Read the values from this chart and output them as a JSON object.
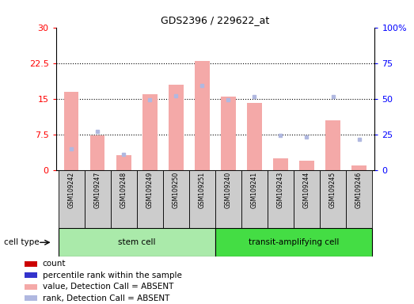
{
  "title": "GDS2396 / 229622_at",
  "samples": [
    "GSM109242",
    "GSM109247",
    "GSM109248",
    "GSM109249",
    "GSM109250",
    "GSM109251",
    "GSM109240",
    "GSM109241",
    "GSM109243",
    "GSM109244",
    "GSM109245",
    "GSM109246"
  ],
  "cell_types": [
    "stem cell",
    "stem cell",
    "stem cell",
    "stem cell",
    "stem cell",
    "stem cell",
    "transit-amplifying cell",
    "transit-amplifying cell",
    "transit-amplifying cell",
    "transit-amplifying cell",
    "transit-amplifying cell",
    "transit-amplifying cell"
  ],
  "bar_values": [
    16.5,
    7.3,
    3.2,
    16.0,
    18.0,
    23.0,
    15.5,
    14.2,
    2.5,
    2.0,
    10.5,
    1.0
  ],
  "dot_values": [
    14.8,
    27.0,
    11.0,
    49.5,
    52.0,
    59.5,
    49.5,
    51.5,
    24.5,
    23.5,
    51.5,
    21.5
  ],
  "ylim_left": [
    0,
    30
  ],
  "ylim_right": [
    0,
    100
  ],
  "left_ticks": [
    0,
    7.5,
    15,
    22.5,
    30
  ],
  "right_ticks": [
    0,
    25,
    50,
    75,
    100
  ],
  "right_tick_labels": [
    "0",
    "25",
    "50",
    "75",
    "100%"
  ],
  "left_tick_labels": [
    "0",
    "7.5",
    "15",
    "22.5",
    "30"
  ],
  "stem_cell_label": "stem cell",
  "transit_label": "transit-amplifying cell",
  "color_bar_absent": "#f4a9a8",
  "color_dot_absent": "#b0b8e0",
  "color_bar_present": "#cc0000",
  "color_dot_present": "#3333cc",
  "cell_type_bg_stem": "#aaeaaa",
  "cell_type_bg_transit": "#44dd44",
  "sample_box_color": "#cccccc",
  "legend_items": [
    {
      "label": "count",
      "color": "#cc0000"
    },
    {
      "label": "percentile rank within the sample",
      "color": "#3333cc"
    },
    {
      "label": "value, Detection Call = ABSENT",
      "color": "#f4a9a8"
    },
    {
      "label": "rank, Detection Call = ABSENT",
      "color": "#b0b8e0"
    }
  ]
}
